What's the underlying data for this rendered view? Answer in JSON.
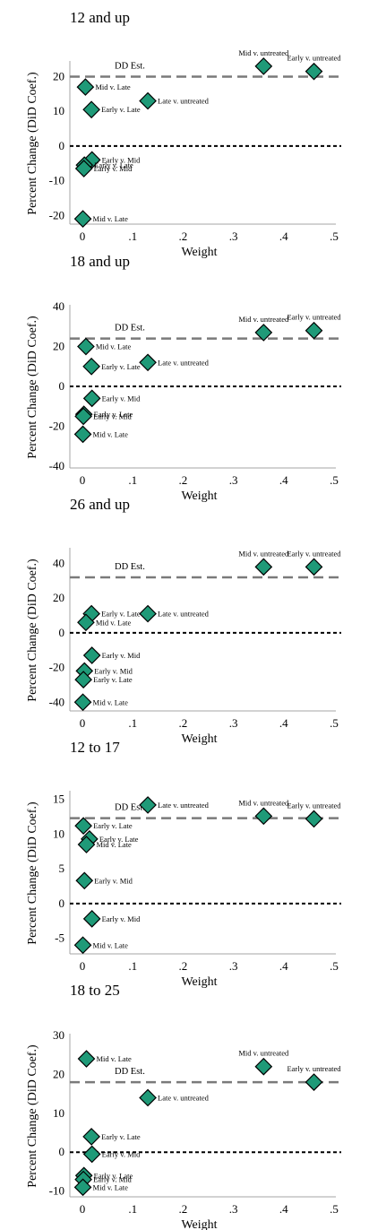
{
  "chart_data": [
    {
      "type": "scatter",
      "title": "12 and up",
      "xlabel": "Weight",
      "ylabel": "Percent Change (DiD Coef.)",
      "xlim": [
        0,
        0.5
      ],
      "ylim": [
        -22,
        24
      ],
      "xticks": [
        "0",
        ".1",
        ".2",
        ".3",
        ".4",
        ".5"
      ],
      "yticks": [
        -20,
        -10,
        0,
        10,
        20
      ],
      "dd_estimate": {
        "label": "DD Est.",
        "value": 20
      },
      "zero_line": 0,
      "points": [
        {
          "label": "Mid v. Late",
          "x": 0.006,
          "y": 17
        },
        {
          "label": "Early v. Late",
          "x": 0.018,
          "y": 10.5
        },
        {
          "label": "Late v. untreated",
          "x": 0.13,
          "y": 13
        },
        {
          "label": "Mid v. untreated",
          "x": 0.36,
          "y": 23
        },
        {
          "label": "Early v. untreated",
          "x": 0.46,
          "y": 21.5
        },
        {
          "label": "Early v. Mid",
          "x": 0.019,
          "y": -4
        },
        {
          "label": "Early v. Late",
          "x": 0.004,
          "y": -5.5
        },
        {
          "label": "Early v. Mid",
          "x": 0.003,
          "y": -6.5
        },
        {
          "label": "Mid v. Late",
          "x": 0.001,
          "y": -21
        }
      ]
    },
    {
      "type": "scatter",
      "title": "18 and up",
      "xlabel": "Weight",
      "ylabel": "Percent Change (DiD Coef.)",
      "xlim": [
        0,
        0.5
      ],
      "ylim": [
        -40,
        40
      ],
      "xticks": [
        "0",
        ".1",
        ".2",
        ".3",
        ".4",
        ".5"
      ],
      "yticks": [
        -40,
        -20,
        0,
        20,
        40
      ],
      "dd_estimate": {
        "label": "DD Est.",
        "value": 24
      },
      "zero_line": 0,
      "points": [
        {
          "label": "Mid v. Late",
          "x": 0.007,
          "y": 20
        },
        {
          "label": "Early v. Late",
          "x": 0.018,
          "y": 10
        },
        {
          "label": "Late v. untreated",
          "x": 0.13,
          "y": 12
        },
        {
          "label": "Mid v. untreated",
          "x": 0.36,
          "y": 27
        },
        {
          "label": "Early v. untreated",
          "x": 0.46,
          "y": 28
        },
        {
          "label": "Early v. Mid",
          "x": 0.019,
          "y": -6
        },
        {
          "label": "Early v. Late",
          "x": 0.003,
          "y": -14
        },
        {
          "label": "Early v. Mid",
          "x": 0.002,
          "y": -15
        },
        {
          "label": "Mid v. Late",
          "x": 0.001,
          "y": -24
        }
      ]
    },
    {
      "type": "scatter",
      "title": "26 and up",
      "xlabel": "Weight",
      "ylabel": "Percent Change (DiD Coef.)",
      "xlim": [
        0,
        0.5
      ],
      "ylim": [
        -44,
        48
      ],
      "xticks": [
        "0",
        ".1",
        ".2",
        ".3",
        ".4",
        ".5"
      ],
      "yticks": [
        -40,
        -20,
        0,
        20,
        40
      ],
      "dd_estimate": {
        "label": "DD Est.",
        "value": 32
      },
      "zero_line": 0,
      "points": [
        {
          "label": "Early v. Late",
          "x": 0.018,
          "y": 11
        },
        {
          "label": "Mid v. Late",
          "x": 0.007,
          "y": 6
        },
        {
          "label": "Late v. untreated",
          "x": 0.13,
          "y": 11
        },
        {
          "label": "Mid v. untreated",
          "x": 0.36,
          "y": 38
        },
        {
          "label": "Early v. untreated",
          "x": 0.46,
          "y": 38
        },
        {
          "label": "Early v. Mid",
          "x": 0.019,
          "y": -13
        },
        {
          "label": "Early v. Mid",
          "x": 0.004,
          "y": -22
        },
        {
          "label": "Early v. Late",
          "x": 0.002,
          "y": -27
        },
        {
          "label": "Mid v. Late",
          "x": 0.001,
          "y": -40
        }
      ]
    },
    {
      "type": "scatter",
      "title": "12 to 17",
      "xlabel": "Weight",
      "ylabel": "Percent Change (DiD Coef.)",
      "xlim": [
        0,
        0.5
      ],
      "ylim": [
        -7,
        16
      ],
      "xticks": [
        "0",
        ".1",
        ".2",
        ".3",
        ".4",
        ".5"
      ],
      "yticks": [
        -5,
        0,
        5,
        10,
        15
      ],
      "dd_estimate": {
        "label": "DD Est.",
        "value": 12.3
      },
      "zero_line": 0,
      "points": [
        {
          "label": "Late v. untreated",
          "x": 0.13,
          "y": 14.2
        },
        {
          "label": "Early v. Late",
          "x": 0.002,
          "y": 11.2
        },
        {
          "label": "Early v. Late",
          "x": 0.014,
          "y": 9.3
        },
        {
          "label": "Mid v. Late",
          "x": 0.008,
          "y": 8.5
        },
        {
          "label": "Mid v. untreated",
          "x": 0.36,
          "y": 12.6
        },
        {
          "label": "Early v. untreated",
          "x": 0.46,
          "y": 12.2
        },
        {
          "label": "Early v. Mid",
          "x": 0.004,
          "y": 3.3
        },
        {
          "label": "Early v. Mid",
          "x": 0.019,
          "y": -2.2
        },
        {
          "label": "Mid v. Late",
          "x": 0.001,
          "y": -6
        }
      ]
    },
    {
      "type": "scatter",
      "title": "18 to 25",
      "xlabel": "Weight",
      "ylabel": "Percent Change (DiD Coef.)",
      "xlim": [
        0,
        0.5
      ],
      "ylim": [
        -11,
        30
      ],
      "xticks": [
        "0",
        ".1",
        ".2",
        ".3",
        ".4",
        ".5"
      ],
      "yticks": [
        -10,
        0,
        10,
        20,
        30
      ],
      "dd_estimate": {
        "label": "DD Est.",
        "value": 18
      },
      "zero_line": 0,
      "points": [
        {
          "label": "Mid v. Late",
          "x": 0.008,
          "y": 24
        },
        {
          "label": "Late v. untreated",
          "x": 0.13,
          "y": 14
        },
        {
          "label": "Mid v. untreated",
          "x": 0.36,
          "y": 22
        },
        {
          "label": "Early v. untreated",
          "x": 0.46,
          "y": 18
        },
        {
          "label": "Early v. Late",
          "x": 0.018,
          "y": 4
        },
        {
          "label": "Early v. Mid",
          "x": 0.019,
          "y": -0.5
        },
        {
          "label": "Early v. Late",
          "x": 0.003,
          "y": -6
        },
        {
          "label": "Early v. Mid",
          "x": 0.002,
          "y": -7
        },
        {
          "label": "Mid v. Late",
          "x": 0.001,
          "y": -9
        }
      ]
    }
  ],
  "colors": {
    "marker_fill": "#1f9a78",
    "marker_stroke": "#000000",
    "dd_line": "#7a7a7a",
    "zero_line": "#000000",
    "axis": "#a6a6a6"
  }
}
